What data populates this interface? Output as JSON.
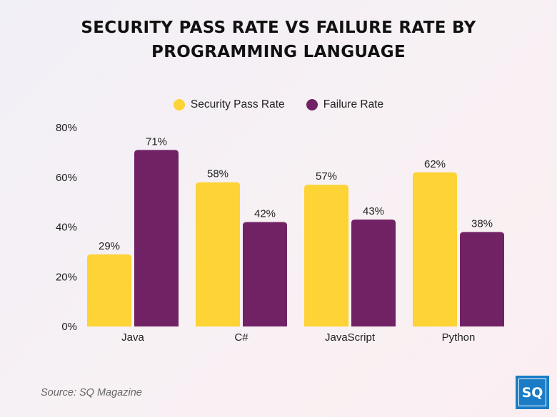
{
  "chart_data": {
    "type": "bar",
    "title_lines": [
      "SECURITY PASS RATE VS FAILURE RATE BY",
      "PROGRAMMING LANGUAGE"
    ],
    "categories": [
      "Java",
      "C#",
      "JavaScript",
      "Python"
    ],
    "series": [
      {
        "name": "Security Pass Rate",
        "color": "#fdd335",
        "values": [
          29,
          58,
          57,
          62
        ],
        "labels": [
          "29%",
          "58%",
          "57%",
          "62%"
        ]
      },
      {
        "name": "Failure Rate",
        "color": "#702265",
        "values": [
          71,
          42,
          43,
          38
        ],
        "labels": [
          "71%",
          "42%",
          "43%",
          "38%"
        ]
      }
    ],
    "ylim": [
      0,
      80
    ],
    "yticks": [
      0,
      20,
      40,
      60,
      80
    ],
    "ytick_labels": [
      "0%",
      "20%",
      "40%",
      "60%",
      "80%"
    ],
    "grid": false,
    "legend_position": "top-center"
  },
  "source": "Source: SQ Magazine",
  "logo_text": "SQ",
  "logo_color": "#1a7cc6"
}
